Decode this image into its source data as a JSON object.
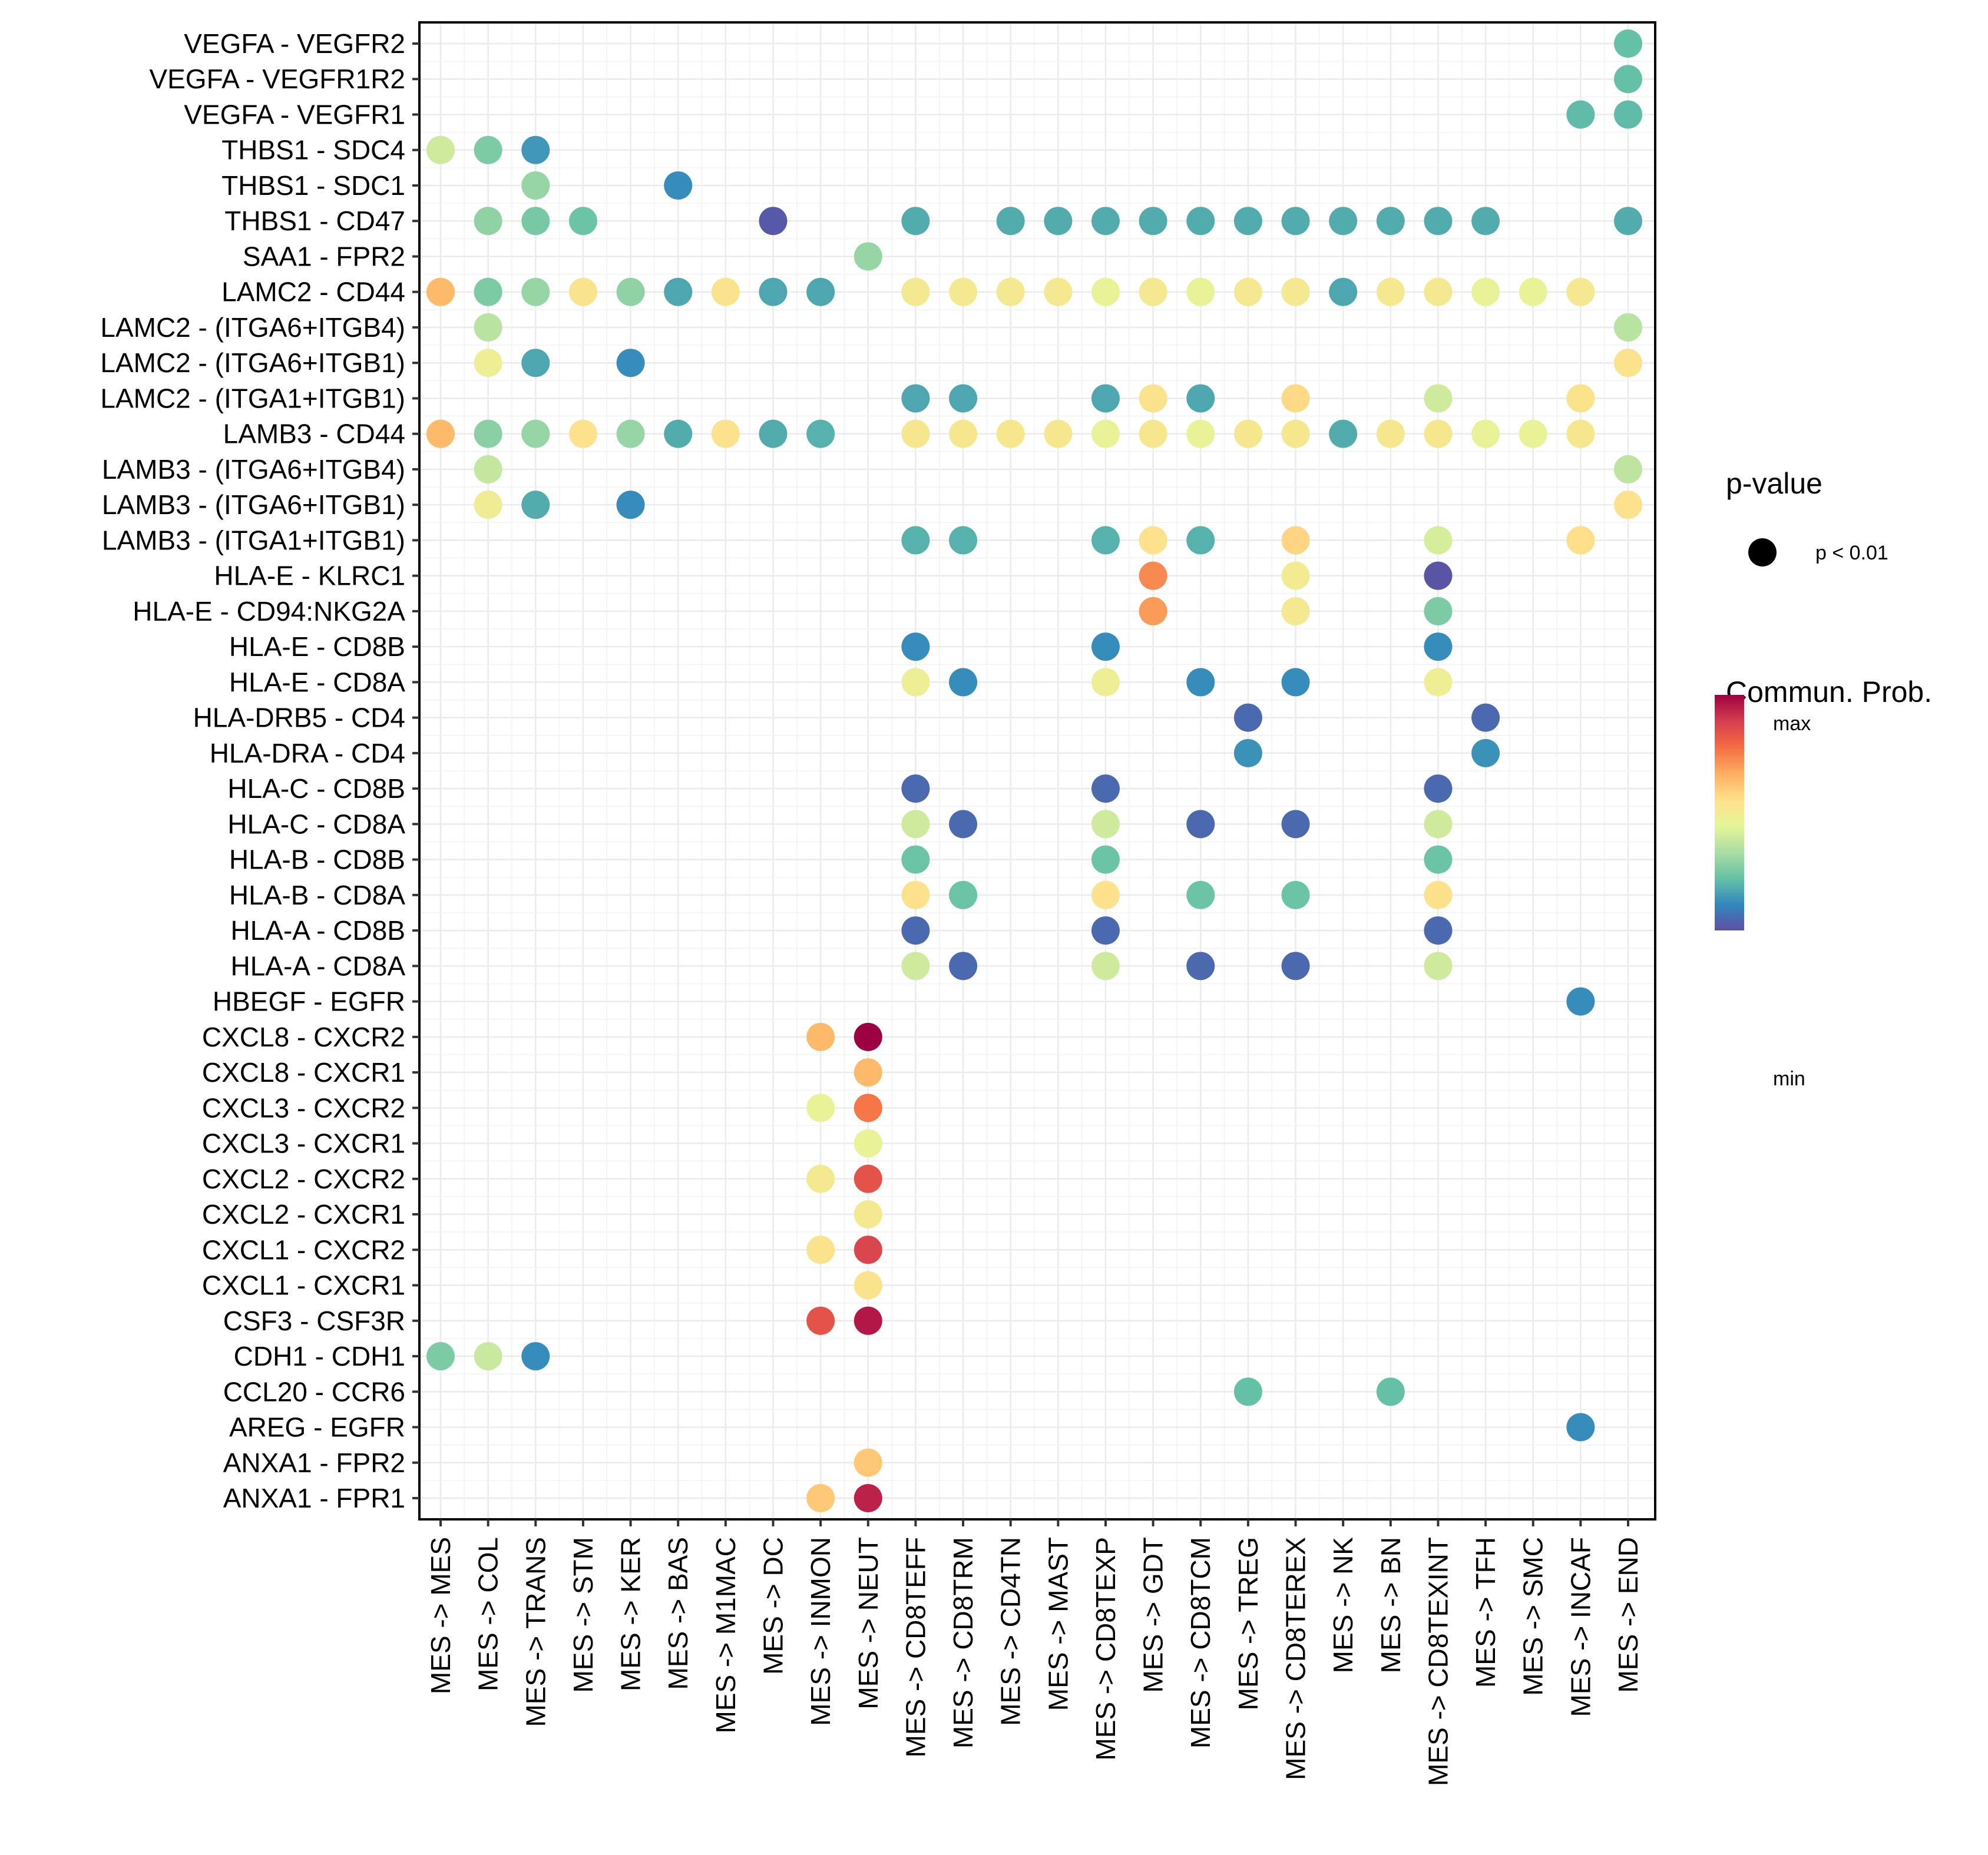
{
  "chart_data": {
    "type": "scatter",
    "subtype": "dot-grid",
    "title": "",
    "xlabel": "",
    "ylabel": "",
    "grid": true,
    "x_categories": [
      "MES -> MES",
      "MES -> COL",
      "MES -> TRANS",
      "MES -> STM",
      "MES -> KER",
      "MES -> BAS",
      "MES -> M1MAC",
      "MES -> DC",
      "MES -> INMON",
      "MES -> NEUT",
      "MES -> CD8TEFF",
      "MES -> CD8TRM",
      "MES -> CD4TN",
      "MES -> MAST",
      "MES -> CD8TEXP",
      "MES -> GDT",
      "MES -> CD8TCM",
      "MES -> TREG",
      "MES -> CD8TEREX",
      "MES -> NK",
      "MES -> BN",
      "MES -> CD8TEXINT",
      "MES -> TFH",
      "MES -> SMC",
      "MES -> INCAF",
      "MES -> END"
    ],
    "y_categories": [
      "VEGFA - VEGFR2",
      "VEGFA - VEGFR1R2",
      "VEGFA - VEGFR1",
      "THBS1 - SDC4",
      "THBS1 - SDC1",
      "THBS1 - CD47",
      "SAA1 - FPR2",
      "LAMC2 - CD44",
      "LAMC2 - (ITGA6+ITGB4)",
      "LAMC2 - (ITGA6+ITGB1)",
      "LAMC2 - (ITGA1+ITGB1)",
      "LAMB3 - CD44",
      "LAMB3 - (ITGA6+ITGB4)",
      "LAMB3 - (ITGA6+ITGB1)",
      "LAMB3 - (ITGA1+ITGB1)",
      "HLA-E - KLRC1",
      "HLA-E - CD94:NKG2A",
      "HLA-E - CD8B",
      "HLA-E - CD8A",
      "HLA-DRB5 - CD4",
      "HLA-DRA - CD4",
      "HLA-C - CD8B",
      "HLA-C - CD8A",
      "HLA-B - CD8B",
      "HLA-B - CD8A",
      "HLA-A - CD8B",
      "HLA-A - CD8A",
      "HBEGF - EGFR",
      "CXCL8 - CXCR2",
      "CXCL8 - CXCR1",
      "CXCL3 - CXCR2",
      "CXCL3 - CXCR1",
      "CXCL2 - CXCR2",
      "CXCL2 - CXCR1",
      "CXCL1 - CXCR2",
      "CXCL1 - CXCR1",
      "CSF3 - CSF3R",
      "CDH1 - CDH1",
      "CCL20 - CCR6",
      "AREG - EGFR",
      "ANXA1 - FPR2",
      "ANXA1 - FPR1"
    ],
    "value_scale": "relative communication probability, 0 = min, 1 = max",
    "points": [
      {
        "y": "VEGFA - VEGFR2",
        "x": 25,
        "v": 0.22
      },
      {
        "y": "VEGFA - VEGFR1R2",
        "x": 25,
        "v": 0.22
      },
      {
        "y": "VEGFA - VEGFR1",
        "x": 24,
        "v": 0.21
      },
      {
        "y": "VEGFA - VEGFR1",
        "x": 25,
        "v": 0.21
      },
      {
        "y": "THBS1 - SDC4",
        "x": 0,
        "v": 0.4
      },
      {
        "y": "THBS1 - SDC4",
        "x": 1,
        "v": 0.26
      },
      {
        "y": "THBS1 - SDC4",
        "x": 2,
        "v": 0.14
      },
      {
        "y": "THBS1 - SDC1",
        "x": 2,
        "v": 0.3
      },
      {
        "y": "THBS1 - SDC1",
        "x": 5,
        "v": 0.12
      },
      {
        "y": "THBS1 - CD47",
        "x": 1,
        "v": 0.29
      },
      {
        "y": "THBS1 - CD47",
        "x": 2,
        "v": 0.25
      },
      {
        "y": "THBS1 - CD47",
        "x": 3,
        "v": 0.23
      },
      {
        "y": "THBS1 - CD47",
        "x": 7,
        "v": 0.02
      },
      {
        "y": "THBS1 - CD47",
        "x": 10,
        "v": 0.18
      },
      {
        "y": "THBS1 - CD47",
        "x": 12,
        "v": 0.18
      },
      {
        "y": "THBS1 - CD47",
        "x": 13,
        "v": 0.18
      },
      {
        "y": "THBS1 - CD47",
        "x": 14,
        "v": 0.18
      },
      {
        "y": "THBS1 - CD47",
        "x": 15,
        "v": 0.18
      },
      {
        "y": "THBS1 - CD47",
        "x": 16,
        "v": 0.18
      },
      {
        "y": "THBS1 - CD47",
        "x": 17,
        "v": 0.18
      },
      {
        "y": "THBS1 - CD47",
        "x": 18,
        "v": 0.18
      },
      {
        "y": "THBS1 - CD47",
        "x": 19,
        "v": 0.18
      },
      {
        "y": "THBS1 - CD47",
        "x": 20,
        "v": 0.18
      },
      {
        "y": "THBS1 - CD47",
        "x": 21,
        "v": 0.18
      },
      {
        "y": "THBS1 - CD47",
        "x": 22,
        "v": 0.18
      },
      {
        "y": "THBS1 - CD47",
        "x": 25,
        "v": 0.18
      },
      {
        "y": "SAA1 - FPR2",
        "x": 9,
        "v": 0.3
      },
      {
        "y": "LAMC2 - CD44",
        "x": 0,
        "v": 0.64
      },
      {
        "y": "LAMC2 - CD44",
        "x": 1,
        "v": 0.26
      },
      {
        "y": "LAMC2 - CD44",
        "x": 2,
        "v": 0.3
      },
      {
        "y": "LAMC2 - CD44",
        "x": 3,
        "v": 0.54
      },
      {
        "y": "LAMC2 - CD44",
        "x": 4,
        "v": 0.29
      },
      {
        "y": "LAMC2 - CD44",
        "x": 5,
        "v": 0.17
      },
      {
        "y": "LAMC2 - CD44",
        "x": 6,
        "v": 0.54
      },
      {
        "y": "LAMC2 - CD44",
        "x": 7,
        "v": 0.17
      },
      {
        "y": "LAMC2 - CD44",
        "x": 8,
        "v": 0.17
      },
      {
        "y": "LAMC2 - CD44",
        "x": 10,
        "v": 0.51
      },
      {
        "y": "LAMC2 - CD44",
        "x": 11,
        "v": 0.51
      },
      {
        "y": "LAMC2 - CD44",
        "x": 12,
        "v": 0.51
      },
      {
        "y": "LAMC2 - CD44",
        "x": 13,
        "v": 0.51
      },
      {
        "y": "LAMC2 - CD44",
        "x": 14,
        "v": 0.46
      },
      {
        "y": "LAMC2 - CD44",
        "x": 15,
        "v": 0.51
      },
      {
        "y": "LAMC2 - CD44",
        "x": 16,
        "v": 0.46
      },
      {
        "y": "LAMC2 - CD44",
        "x": 17,
        "v": 0.51
      },
      {
        "y": "LAMC2 - CD44",
        "x": 18,
        "v": 0.51
      },
      {
        "y": "LAMC2 - CD44",
        "x": 19,
        "v": 0.17
      },
      {
        "y": "LAMC2 - CD44",
        "x": 20,
        "v": 0.51
      },
      {
        "y": "LAMC2 - CD44",
        "x": 21,
        "v": 0.51
      },
      {
        "y": "LAMC2 - CD44",
        "x": 22,
        "v": 0.46
      },
      {
        "y": "LAMC2 - CD44",
        "x": 23,
        "v": 0.46
      },
      {
        "y": "LAMC2 - CD44",
        "x": 24,
        "v": 0.51
      },
      {
        "y": "LAMC2 - (ITGA6+ITGB4)",
        "x": 1,
        "v": 0.36
      },
      {
        "y": "LAMC2 - (ITGA6+ITGB4)",
        "x": 25,
        "v": 0.36
      },
      {
        "y": "LAMC2 - (ITGA6+ITGB1)",
        "x": 1,
        "v": 0.48
      },
      {
        "y": "LAMC2 - (ITGA6+ITGB1)",
        "x": 2,
        "v": 0.17
      },
      {
        "y": "LAMC2 - (ITGA6+ITGB1)",
        "x": 4,
        "v": 0.12
      },
      {
        "y": "LAMC2 - (ITGA6+ITGB1)",
        "x": 25,
        "v": 0.54
      },
      {
        "y": "LAMC2 - (ITGA1+ITGB1)",
        "x": 10,
        "v": 0.17
      },
      {
        "y": "LAMC2 - (ITGA1+ITGB1)",
        "x": 11,
        "v": 0.17
      },
      {
        "y": "LAMC2 - (ITGA1+ITGB1)",
        "x": 14,
        "v": 0.17
      },
      {
        "y": "LAMC2 - (ITGA1+ITGB1)",
        "x": 15,
        "v": 0.54
      },
      {
        "y": "LAMC2 - (ITGA1+ITGB1)",
        "x": 16,
        "v": 0.17
      },
      {
        "y": "LAMC2 - (ITGA1+ITGB1)",
        "x": 18,
        "v": 0.57
      },
      {
        "y": "LAMC2 - (ITGA1+ITGB1)",
        "x": 21,
        "v": 0.4
      },
      {
        "y": "LAMC2 - (ITGA1+ITGB1)",
        "x": 24,
        "v": 0.54
      },
      {
        "y": "LAMB3 - CD44",
        "x": 0,
        "v": 0.64
      },
      {
        "y": "LAMB3 - CD44",
        "x": 1,
        "v": 0.28
      },
      {
        "y": "LAMB3 - CD44",
        "x": 2,
        "v": 0.3
      },
      {
        "y": "LAMB3 - CD44",
        "x": 3,
        "v": 0.55
      },
      {
        "y": "LAMB3 - CD44",
        "x": 4,
        "v": 0.3
      },
      {
        "y": "LAMB3 - CD44",
        "x": 5,
        "v": 0.18
      },
      {
        "y": "LAMB3 - CD44",
        "x": 6,
        "v": 0.55
      },
      {
        "y": "LAMB3 - CD44",
        "x": 7,
        "v": 0.18
      },
      {
        "y": "LAMB3 - CD44",
        "x": 8,
        "v": 0.19
      },
      {
        "y": "LAMB3 - CD44",
        "x": 10,
        "v": 0.52
      },
      {
        "y": "LAMB3 - CD44",
        "x": 11,
        "v": 0.52
      },
      {
        "y": "LAMB3 - CD44",
        "x": 12,
        "v": 0.52
      },
      {
        "y": "LAMB3 - CD44",
        "x": 13,
        "v": 0.52
      },
      {
        "y": "LAMB3 - CD44",
        "x": 14,
        "v": 0.46
      },
      {
        "y": "LAMB3 - CD44",
        "x": 15,
        "v": 0.52
      },
      {
        "y": "LAMB3 - CD44",
        "x": 16,
        "v": 0.46
      },
      {
        "y": "LAMB3 - CD44",
        "x": 17,
        "v": 0.52
      },
      {
        "y": "LAMB3 - CD44",
        "x": 18,
        "v": 0.52
      },
      {
        "y": "LAMB3 - CD44",
        "x": 19,
        "v": 0.18
      },
      {
        "y": "LAMB3 - CD44",
        "x": 20,
        "v": 0.52
      },
      {
        "y": "LAMB3 - CD44",
        "x": 21,
        "v": 0.52
      },
      {
        "y": "LAMB3 - CD44",
        "x": 22,
        "v": 0.46
      },
      {
        "y": "LAMB3 - CD44",
        "x": 23,
        "v": 0.46
      },
      {
        "y": "LAMB3 - CD44",
        "x": 24,
        "v": 0.52
      },
      {
        "y": "LAMB3 - (ITGA6+ITGB4)",
        "x": 1,
        "v": 0.38
      },
      {
        "y": "LAMB3 - (ITGA6+ITGB4)",
        "x": 25,
        "v": 0.37
      },
      {
        "y": "LAMB3 - (ITGA6+ITGB1)",
        "x": 1,
        "v": 0.49
      },
      {
        "y": "LAMB3 - (ITGA6+ITGB1)",
        "x": 2,
        "v": 0.18
      },
      {
        "y": "LAMB3 - (ITGA6+ITGB1)",
        "x": 4,
        "v": 0.12
      },
      {
        "y": "LAMB3 - (ITGA6+ITGB1)",
        "x": 25,
        "v": 0.55
      },
      {
        "y": "LAMB3 - (ITGA1+ITGB1)",
        "x": 10,
        "v": 0.19
      },
      {
        "y": "LAMB3 - (ITGA1+ITGB1)",
        "x": 11,
        "v": 0.19
      },
      {
        "y": "LAMB3 - (ITGA1+ITGB1)",
        "x": 14,
        "v": 0.19
      },
      {
        "y": "LAMB3 - (ITGA1+ITGB1)",
        "x": 15,
        "v": 0.55
      },
      {
        "y": "LAMB3 - (ITGA1+ITGB1)",
        "x": 16,
        "v": 0.19
      },
      {
        "y": "LAMB3 - (ITGA1+ITGB1)",
        "x": 18,
        "v": 0.58
      },
      {
        "y": "LAMB3 - (ITGA1+ITGB1)",
        "x": 21,
        "v": 0.41
      },
      {
        "y": "LAMB3 - (ITGA1+ITGB1)",
        "x": 24,
        "v": 0.56
      },
      {
        "y": "HLA-E - KLRC1",
        "x": 15,
        "v": 0.73
      },
      {
        "y": "HLA-E - KLRC1",
        "x": 18,
        "v": 0.5
      },
      {
        "y": "HLA-E - KLRC1",
        "x": 21,
        "v": 0.01
      },
      {
        "y": "HLA-E - CD94:NKG2A",
        "x": 15,
        "v": 0.7
      },
      {
        "y": "HLA-E - CD94:NKG2A",
        "x": 18,
        "v": 0.51
      },
      {
        "y": "HLA-E - CD94:NKG2A",
        "x": 21,
        "v": 0.26
      },
      {
        "y": "HLA-E - CD8B",
        "x": 10,
        "v": 0.12
      },
      {
        "y": "HLA-E - CD8B",
        "x": 14,
        "v": 0.12
      },
      {
        "y": "HLA-E - CD8B",
        "x": 21,
        "v": 0.12
      },
      {
        "y": "HLA-E - CD8A",
        "x": 10,
        "v": 0.48
      },
      {
        "y": "HLA-E - CD8A",
        "x": 11,
        "v": 0.12
      },
      {
        "y": "HLA-E - CD8A",
        "x": 14,
        "v": 0.48
      },
      {
        "y": "HLA-E - CD8A",
        "x": 16,
        "v": 0.12
      },
      {
        "y": "HLA-E - CD8A",
        "x": 18,
        "v": 0.12
      },
      {
        "y": "HLA-E - CD8A",
        "x": 21,
        "v": 0.48
      },
      {
        "y": "HLA-DRB5 - CD4",
        "x": 17,
        "v": 0.05
      },
      {
        "y": "HLA-DRB5 - CD4",
        "x": 22,
        "v": 0.05
      },
      {
        "y": "HLA-DRA - CD4",
        "x": 17,
        "v": 0.13
      },
      {
        "y": "HLA-DRA - CD4",
        "x": 22,
        "v": 0.13
      },
      {
        "y": "HLA-C - CD8B",
        "x": 10,
        "v": 0.05
      },
      {
        "y": "HLA-C - CD8B",
        "x": 14,
        "v": 0.05
      },
      {
        "y": "HLA-C - CD8B",
        "x": 21,
        "v": 0.05
      },
      {
        "y": "HLA-C - CD8A",
        "x": 10,
        "v": 0.4
      },
      {
        "y": "HLA-C - CD8A",
        "x": 11,
        "v": 0.05
      },
      {
        "y": "HLA-C - CD8A",
        "x": 14,
        "v": 0.4
      },
      {
        "y": "HLA-C - CD8A",
        "x": 16,
        "v": 0.05
      },
      {
        "y": "HLA-C - CD8A",
        "x": 18,
        "v": 0.05
      },
      {
        "y": "HLA-C - CD8A",
        "x": 21,
        "v": 0.4
      },
      {
        "y": "HLA-B - CD8B",
        "x": 10,
        "v": 0.23
      },
      {
        "y": "HLA-B - CD8B",
        "x": 14,
        "v": 0.23
      },
      {
        "y": "HLA-B - CD8B",
        "x": 21,
        "v": 0.23
      },
      {
        "y": "HLA-B - CD8A",
        "x": 10,
        "v": 0.55
      },
      {
        "y": "HLA-B - CD8A",
        "x": 11,
        "v": 0.23
      },
      {
        "y": "HLA-B - CD8A",
        "x": 14,
        "v": 0.55
      },
      {
        "y": "HLA-B - CD8A",
        "x": 16,
        "v": 0.23
      },
      {
        "y": "HLA-B - CD8A",
        "x": 18,
        "v": 0.23
      },
      {
        "y": "HLA-B - CD8A",
        "x": 21,
        "v": 0.55
      },
      {
        "y": "HLA-A - CD8B",
        "x": 10,
        "v": 0.05
      },
      {
        "y": "HLA-A - CD8B",
        "x": 14,
        "v": 0.05
      },
      {
        "y": "HLA-A - CD8B",
        "x": 21,
        "v": 0.05
      },
      {
        "y": "HLA-A - CD8A",
        "x": 10,
        "v": 0.4
      },
      {
        "y": "HLA-A - CD8A",
        "x": 11,
        "v": 0.05
      },
      {
        "y": "HLA-A - CD8A",
        "x": 14,
        "v": 0.4
      },
      {
        "y": "HLA-A - CD8A",
        "x": 16,
        "v": 0.05
      },
      {
        "y": "HLA-A - CD8A",
        "x": 18,
        "v": 0.05
      },
      {
        "y": "HLA-A - CD8A",
        "x": 21,
        "v": 0.4
      },
      {
        "y": "HBEGF - EGFR",
        "x": 24,
        "v": 0.12
      },
      {
        "y": "CXCL8 - CXCR2",
        "x": 8,
        "v": 0.64
      },
      {
        "y": "CXCL8 - CXCR2",
        "x": 9,
        "v": 1.0
      },
      {
        "y": "CXCL8 - CXCR1",
        "x": 9,
        "v": 0.64
      },
      {
        "y": "CXCL3 - CXCR2",
        "x": 8,
        "v": 0.46
      },
      {
        "y": "CXCL3 - CXCR2",
        "x": 9,
        "v": 0.76
      },
      {
        "y": "CXCL3 - CXCR1",
        "x": 9,
        "v": 0.46
      },
      {
        "y": "CXCL2 - CXCR2",
        "x": 8,
        "v": 0.51
      },
      {
        "y": "CXCL2 - CXCR2",
        "x": 9,
        "v": 0.84
      },
      {
        "y": "CXCL2 - CXCR1",
        "x": 9,
        "v": 0.51
      },
      {
        "y": "CXCL1 - CXCR2",
        "x": 8,
        "v": 0.54
      },
      {
        "y": "CXCL1 - CXCR2",
        "x": 9,
        "v": 0.87
      },
      {
        "y": "CXCL1 - CXCR1",
        "x": 9,
        "v": 0.54
      },
      {
        "y": "CSF3 - CSF3R",
        "x": 8,
        "v": 0.84
      },
      {
        "y": "CSF3 - CSF3R",
        "x": 9,
        "v": 0.96
      },
      {
        "y": "CDH1 - CDH1",
        "x": 0,
        "v": 0.26
      },
      {
        "y": "CDH1 - CDH1",
        "x": 1,
        "v": 0.39
      },
      {
        "y": "CDH1 - CDH1",
        "x": 2,
        "v": 0.12
      },
      {
        "y": "CCL20 - CCR6",
        "x": 17,
        "v": 0.22
      },
      {
        "y": "CCL20 - CCR6",
        "x": 20,
        "v": 0.22
      },
      {
        "y": "AREG - EGFR",
        "x": 24,
        "v": 0.12
      },
      {
        "y": "ANXA1 - FPR2",
        "x": 9,
        "v": 0.61
      },
      {
        "y": "ANXA1 - FPR1",
        "x": 8,
        "v": 0.61
      },
      {
        "y": "ANXA1 - FPR1",
        "x": 9,
        "v": 0.94
      }
    ],
    "legend": {
      "size_title": "p-value",
      "size_label": "p < 0.01",
      "color_title": "Commun. Prob.",
      "color_max_label": "max",
      "color_min_label": "min",
      "placement": "right"
    },
    "palette": [
      "#5E4FA2",
      "#3288BD",
      "#66C2A5",
      "#ABDDA4",
      "#E6F598",
      "#FEE08B",
      "#FDAE61",
      "#F46D43",
      "#D53E4F",
      "#9E0142"
    ]
  }
}
